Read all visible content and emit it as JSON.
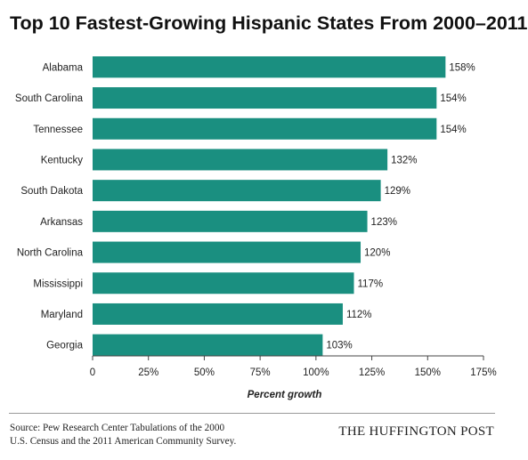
{
  "chart_data": {
    "type": "bar",
    "orientation": "horizontal",
    "title": "Top 10 Fastest-Growing Hispanic States From 2000–2011",
    "xlabel": "Percent growth",
    "ylabel": "",
    "categories": [
      "Alabama",
      "South Carolina",
      "Tennessee",
      "Kentucky",
      "South Dakota",
      "Arkansas",
      "North Carolina",
      "Mississippi",
      "Maryland",
      "Georgia"
    ],
    "values": [
      158,
      154,
      154,
      132,
      129,
      123,
      120,
      117,
      112,
      103
    ],
    "data_labels": [
      "158%",
      "154%",
      "154%",
      "132%",
      "129%",
      "123%",
      "120%",
      "117%",
      "112%",
      "103%"
    ],
    "xlim": [
      0,
      175
    ],
    "xticks": [
      0,
      25,
      50,
      75,
      100,
      125,
      150,
      175
    ],
    "xtick_labels": [
      "0",
      "25%",
      "50%",
      "75%",
      "100%",
      "125%",
      "150%",
      "175%"
    ],
    "grid": false,
    "legend": "none",
    "bar_color": "#1a8f80"
  },
  "footer": {
    "source_line1": "Source: Pew Research Center Tabulations of the 2000",
    "source_line2": "U.S. Census and the 2011 American Community Survey.",
    "brand": "THE HUFFINGTON POST"
  }
}
